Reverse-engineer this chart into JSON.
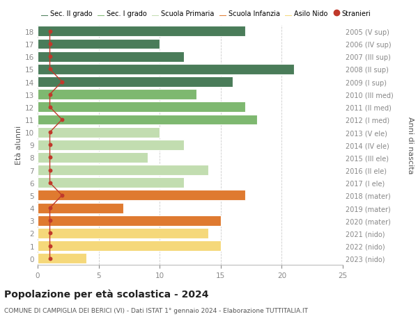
{
  "ages": [
    0,
    1,
    2,
    3,
    4,
    5,
    6,
    7,
    8,
    9,
    10,
    11,
    12,
    13,
    14,
    15,
    16,
    17,
    18
  ],
  "years": [
    "2023 (nido)",
    "2022 (nido)",
    "2021 (nido)",
    "2020 (mater)",
    "2019 (mater)",
    "2018 (mater)",
    "2017 (I ele)",
    "2016 (II ele)",
    "2015 (III ele)",
    "2014 (IV ele)",
    "2013 (V ele)",
    "2012 (I med)",
    "2011 (II med)",
    "2010 (III med)",
    "2009 (I sup)",
    "2008 (II sup)",
    "2007 (III sup)",
    "2006 (IV sup)",
    "2005 (V sup)"
  ],
  "values": [
    4,
    15,
    14,
    15,
    7,
    17,
    12,
    14,
    9,
    12,
    10,
    18,
    17,
    13,
    16,
    21,
    12,
    10,
    17
  ],
  "stranieri": [
    1,
    1,
    1,
    1,
    1,
    2,
    1,
    1,
    1,
    1,
    1,
    2,
    1,
    1,
    2,
    1,
    1,
    1,
    1
  ],
  "colors": {
    "Sec. II grado": "#4a7c59",
    "Sec. I grado": "#7eb870",
    "Scuola Primaria": "#c2ddb0",
    "Scuola Infanzia": "#df7a30",
    "Asilo Nido": "#f5d87a",
    "Stranieri": "#c0392b"
  },
  "category_ranges": {
    "Sec. II grado": [
      14,
      18
    ],
    "Sec. I grado": [
      11,
      13
    ],
    "Scuola Primaria": [
      6,
      10
    ],
    "Scuola Infanzia": [
      3,
      5
    ],
    "Asilo Nido": [
      0,
      2
    ]
  },
  "title": "Popolazione per età scolastica - 2024",
  "subtitle": "COMUNE DI CAMPIGLIA DEI BERICI (VI) - Dati ISTAT 1° gennaio 2024 - Elaborazione TUTTITALIA.IT",
  "ylabel": "Età alunni",
  "ylabel_right": "Anni di nascita",
  "xlim": [
    0,
    25
  ],
  "xticks": [
    0,
    5,
    10,
    15,
    20,
    25
  ],
  "background_color": "#ffffff",
  "grid_color": "#cccccc",
  "tick_label_color": "#888888",
  "year_label_color": "#888888"
}
